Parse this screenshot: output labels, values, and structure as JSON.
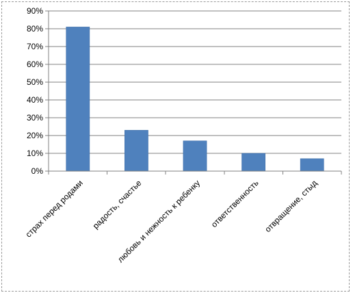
{
  "chart_data": {
    "type": "bar",
    "title": "",
    "xlabel": "",
    "ylabel": "",
    "categories": [
      "страх перед родами",
      "радость, счастье",
      "любовь и нежность к ребенку",
      "ответственность",
      "отвращение, стыд"
    ],
    "values": [
      81,
      23,
      17,
      10,
      7
    ],
    "value_unit": "%",
    "ylim": [
      0,
      90
    ],
    "yticks": [
      "0%",
      "10%",
      "20%",
      "30%",
      "40%",
      "50%",
      "60%",
      "70%",
      "80%",
      "90%"
    ],
    "grid": true,
    "legend": "none",
    "colors": {
      "bar": "#4f81bd",
      "bar_edge": "#3a6aa5",
      "grid": "#808080",
      "axis": "#808080"
    }
  }
}
